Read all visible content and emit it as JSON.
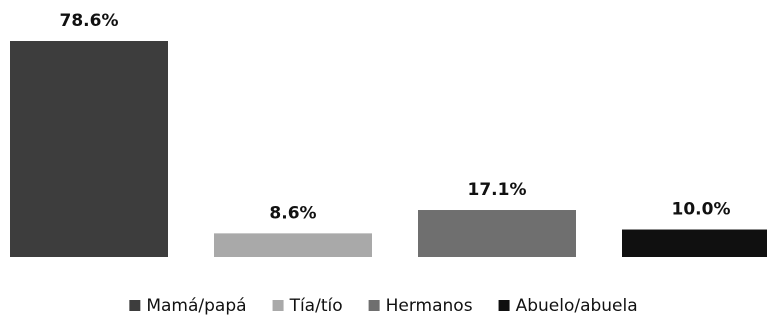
{
  "chart_data": {
    "type": "bar",
    "categories": [
      "Mamá/papá",
      "Tía/tío",
      "Hermanos",
      "Abuelo/abuela"
    ],
    "values": [
      78.6,
      8.6,
      17.1,
      10.0
    ],
    "data_labels": [
      "78.6%",
      "8.6%",
      "17.1%",
      "10.0%"
    ],
    "colors": [
      "#3d3d3d",
      "#a9a9a9",
      "#6f6f6f",
      "#101010"
    ],
    "ylim": [
      0,
      78.6
    ],
    "grid": false,
    "legend_position": "bottom"
  }
}
